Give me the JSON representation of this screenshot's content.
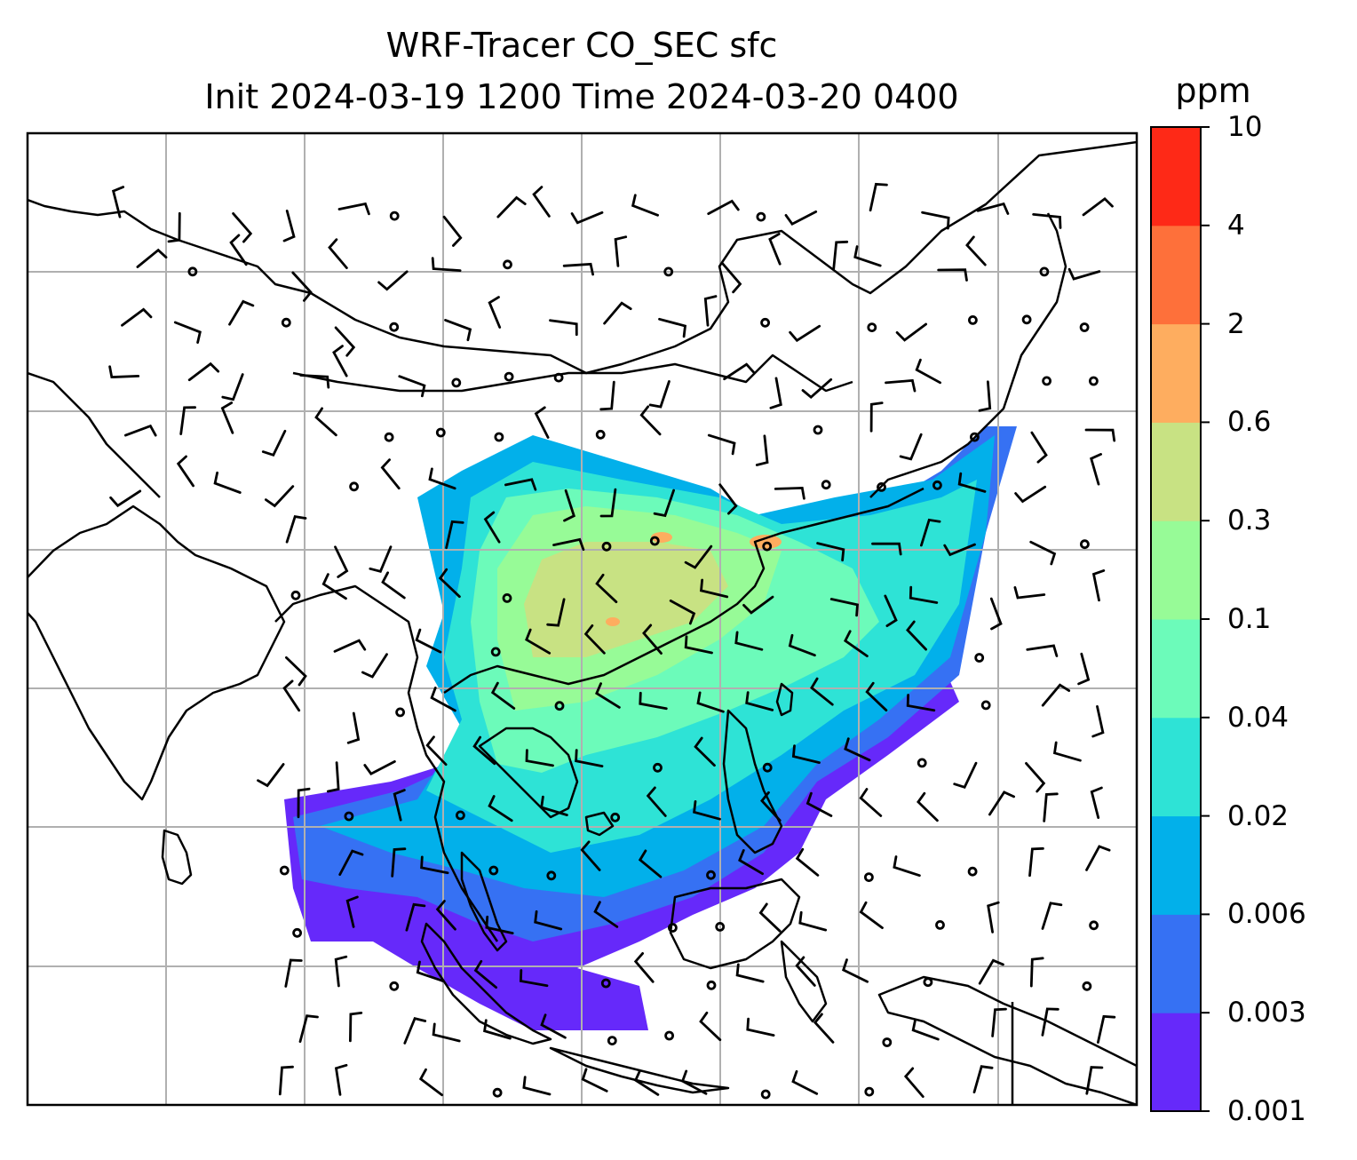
{
  "title": {
    "line1": "WRF-Tracer CO_SEC sfc",
    "line2": "Init 2024-03-19 1200 Time 2024-03-20 0400"
  },
  "colorbar": {
    "unit": "ppm",
    "levels": [
      "0.001",
      "0.003",
      "0.006",
      "0.02",
      "0.04",
      "0.1",
      "0.3",
      "0.6",
      "2",
      "4",
      "10"
    ],
    "colors": [
      "#6629fa",
      "#3671f3",
      "#02b0ea",
      "#2ee3d6",
      "#6cfbba",
      "#97fb97",
      "#c8e283",
      "#fead5f",
      "#fe703a",
      "#fe2917"
    ]
  },
  "map_style": {
    "grid_color": "#b0b0b0",
    "coastline_color": "#000000",
    "barb_color": "#000000"
  },
  "chart_data": {
    "type": "map",
    "field": "CO_SEC surface tracer concentration",
    "unit": "ppm",
    "overlay": "wind barbs and calm-wind circles",
    "region": "East and Southeast Asia"
  }
}
